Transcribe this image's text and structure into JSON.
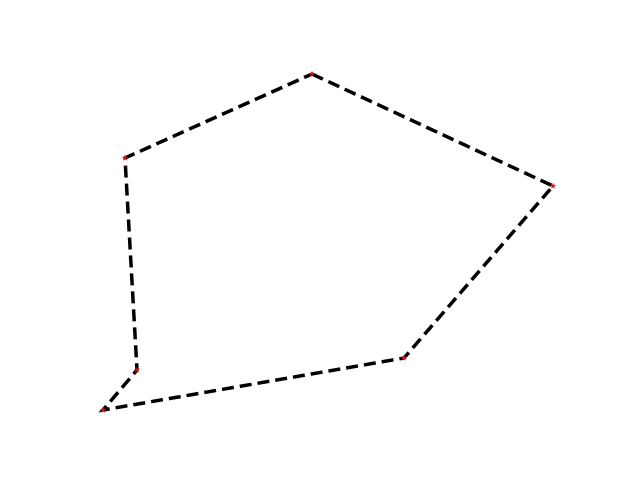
{
  "diagram": {
    "type": "polygon",
    "closed": true,
    "vertex_count": 6,
    "colors": {
      "edge": "#000000",
      "vertex": "#ff0000",
      "background": "#ffffff"
    },
    "edge_style": "dashed",
    "vertex_marker": "star"
  }
}
